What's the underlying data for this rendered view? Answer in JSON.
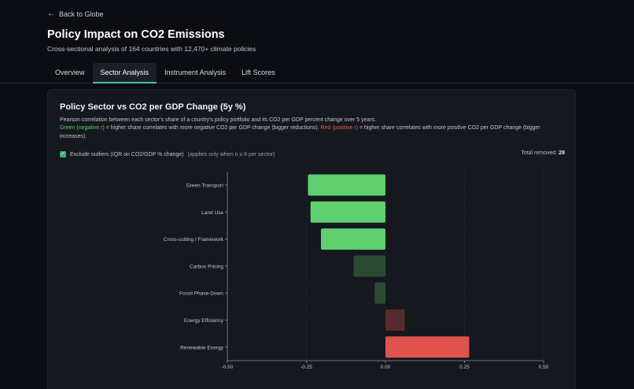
{
  "nav": {
    "back_label": "Back to Globe"
  },
  "header": {
    "title": "Policy Impact on CO2 Emissions",
    "subtitle": "Cross-sectional analysis of 164 countries with 12,470+ climate policies"
  },
  "tabs": [
    {
      "label": "Overview",
      "active": false
    },
    {
      "label": "Sector Analysis",
      "active": true
    },
    {
      "label": "Instrument Analysis",
      "active": false
    },
    {
      "label": "Lift Scores",
      "active": false
    }
  ],
  "card": {
    "title": "Policy Sector vs CO2 per GDP Change (5y %)",
    "description": "Pearson correlation between each sector's share of a country's policy portfolio and its CO2 per GDP percent change over 5 years.",
    "legend_green": "Green (negative r)",
    "legend_green_rest": " = higher share correlates with ",
    "legend_green_em": "more negative",
    "legend_green_tail": " CO2 per GDP change (bigger reductions). ",
    "legend_red": "Red (positive r)",
    "legend_red_rest": " = higher share correlates with ",
    "legend_red_em": "more positive",
    "legend_red_tail": " CO2 per GDP change (bigger increases).",
    "filter_label": "Exclude outliers (IQR on CO2/GDP % change)",
    "filter_note": "(applies only when n ≥ 8 per sector)",
    "filter_checked": true,
    "total_label": "Total removed:",
    "total_value": "28"
  },
  "colors": {
    "green_strong": "#5fcf6f",
    "green_faded": "#2b4a34",
    "red_strong": "#e0524f",
    "red_faded": "#5a2a2c",
    "accent": "#46c7a0"
  },
  "chart_data": {
    "type": "bar",
    "orientation": "horizontal",
    "categories": [
      "Green Transport",
      "Land Use",
      "Cross-cutting / Framework",
      "Carbon Pricing",
      "Fossil Phase-Down",
      "Energy Efficiency",
      "Renewable Energy"
    ],
    "values": [
      -0.245,
      -0.237,
      -0.204,
      -0.101,
      -0.034,
      0.061,
      0.265
    ],
    "faded": [
      false,
      false,
      false,
      true,
      true,
      true,
      false
    ],
    "xlim": [
      -0.5,
      0.5
    ],
    "ticks": [
      "-0.50",
      "-0.25",
      "0.00",
      "0.25",
      "0.50"
    ],
    "tick_values": [
      -0.5,
      -0.25,
      0,
      0.25,
      0.5
    ],
    "grid": "vertical dashed",
    "xlabel": "",
    "ylabel": ""
  }
}
